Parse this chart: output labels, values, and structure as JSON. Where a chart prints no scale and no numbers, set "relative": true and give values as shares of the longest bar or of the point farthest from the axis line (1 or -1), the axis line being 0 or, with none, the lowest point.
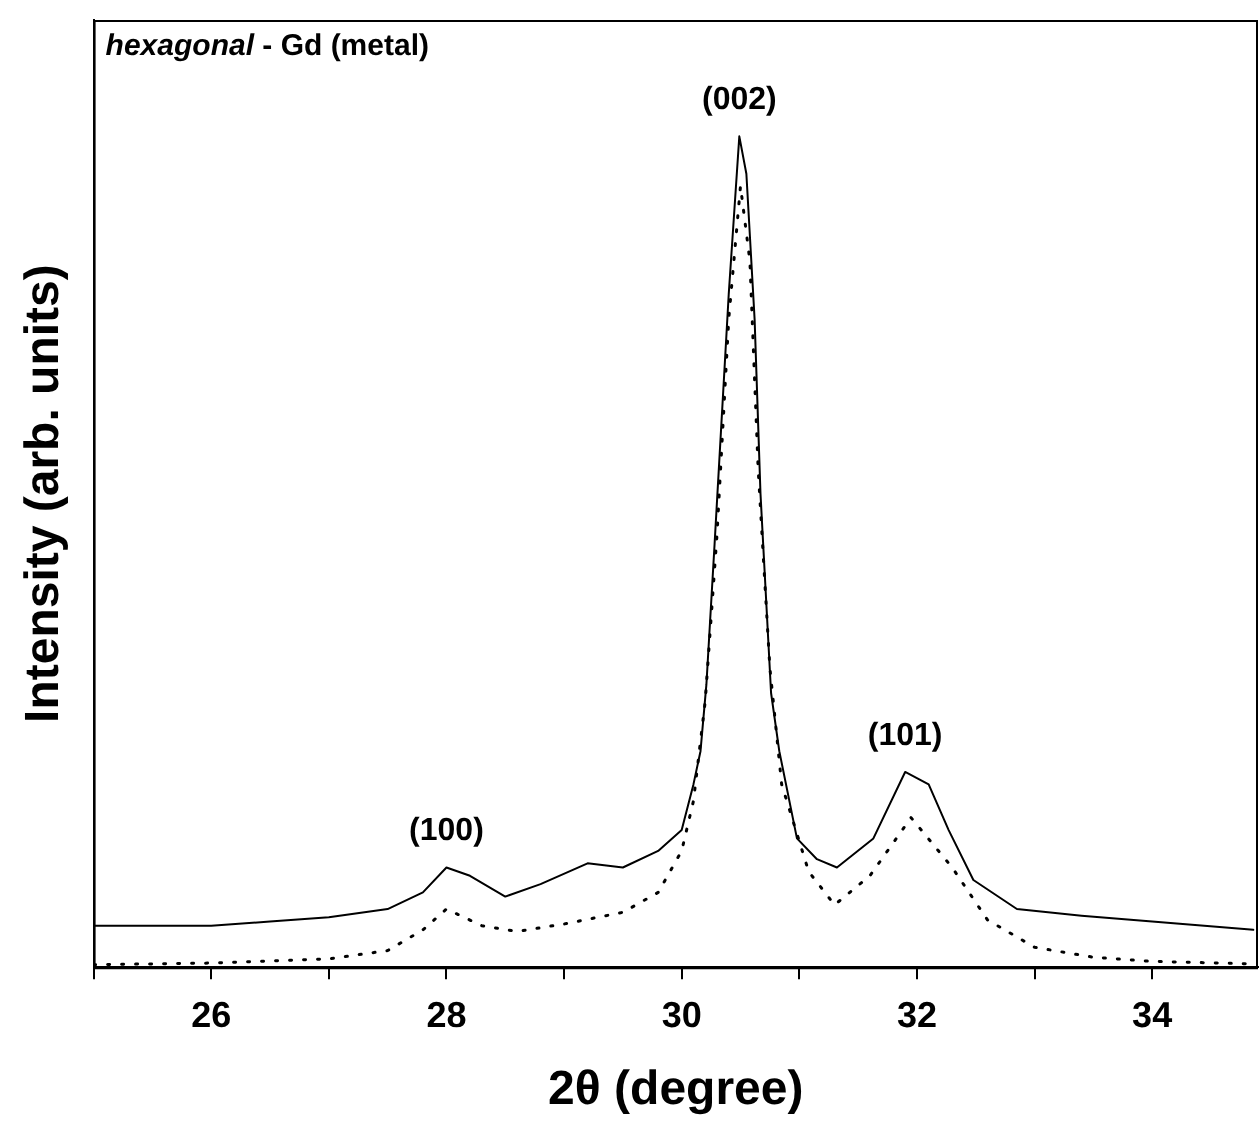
{
  "chart_data": {
    "type": "line",
    "title": "hexagonal - Gd (metal)",
    "xlabel": "2θ (degree)",
    "ylabel": "Intensity (arb. units)",
    "relative": true,
    "grid": false,
    "legend": false,
    "marker": "none",
    "xlim": [
      25,
      34.9
    ],
    "xticks": [
      {
        "value": 25,
        "label": null
      },
      26,
      {
        "value": 27,
        "label": null
      },
      28,
      {
        "value": 29,
        "label": null
      },
      30,
      {
        "value": 31,
        "label": null
      },
      32,
      {
        "value": 33,
        "label": null
      },
      34
    ],
    "annotations": [
      {
        "text": "(100)",
        "x": 28,
        "y": 0.12
      },
      {
        "text": "(002)",
        "x": 30.49,
        "y": 1
      },
      {
        "text": "(101)",
        "x": 31.9,
        "y": 0.235
      }
    ],
    "series": [
      {
        "color": "#000000",
        "line_style": "solid",
        "x": [
          25,
          25.5,
          26,
          26.5,
          27,
          27.5,
          27.8,
          28,
          28.2,
          28.5,
          28.8,
          29.2,
          29.5,
          29.8,
          30,
          30.1,
          30.16,
          30.21,
          30.28,
          30.4,
          30.49,
          30.55,
          30.62,
          30.67,
          30.76,
          30.83,
          30.98,
          31.15,
          31.32,
          31.63,
          31.9,
          32.1,
          32.27,
          32.48,
          32.85,
          33.4,
          34,
          34.86
        ],
        "values": [
          0.05,
          0.05,
          0.05,
          0.055,
          0.06,
          0.07,
          0.09,
          0.12,
          0.11,
          0.085,
          0.1,
          0.125,
          0.12,
          0.14,
          0.165,
          0.22,
          0.26,
          0.34,
          0.51,
          0.81,
          1,
          0.955,
          0.78,
          0.57,
          0.33,
          0.26,
          0.155,
          0.13,
          0.12,
          0.155,
          0.235,
          0.22,
          0.165,
          0.105,
          0.07,
          0.062,
          0.055,
          0.045
        ]
      },
      {
        "color": "#000000",
        "line_style": "dotted",
        "x": [
          25,
          26,
          27,
          27.5,
          27.8,
          28,
          28.3,
          28.6,
          29,
          29.5,
          29.8,
          30,
          30.1,
          30.2,
          30.3,
          30.4,
          30.5,
          30.58,
          30.65,
          30.75,
          30.85,
          31.08,
          31.3,
          31.6,
          31.95,
          32.3,
          32.6,
          33,
          33.5,
          34,
          34.85
        ],
        "values": [
          0.003,
          0.005,
          0.01,
          0.02,
          0.045,
          0.07,
          0.05,
          0.043,
          0.052,
          0.066,
          0.09,
          0.14,
          0.2,
          0.32,
          0.52,
          0.78,
          0.94,
          0.85,
          0.6,
          0.36,
          0.22,
          0.115,
          0.075,
          0.11,
          0.18,
          0.12,
          0.057,
          0.024,
          0.012,
          0.007,
          0.004
        ]
      }
    ]
  }
}
